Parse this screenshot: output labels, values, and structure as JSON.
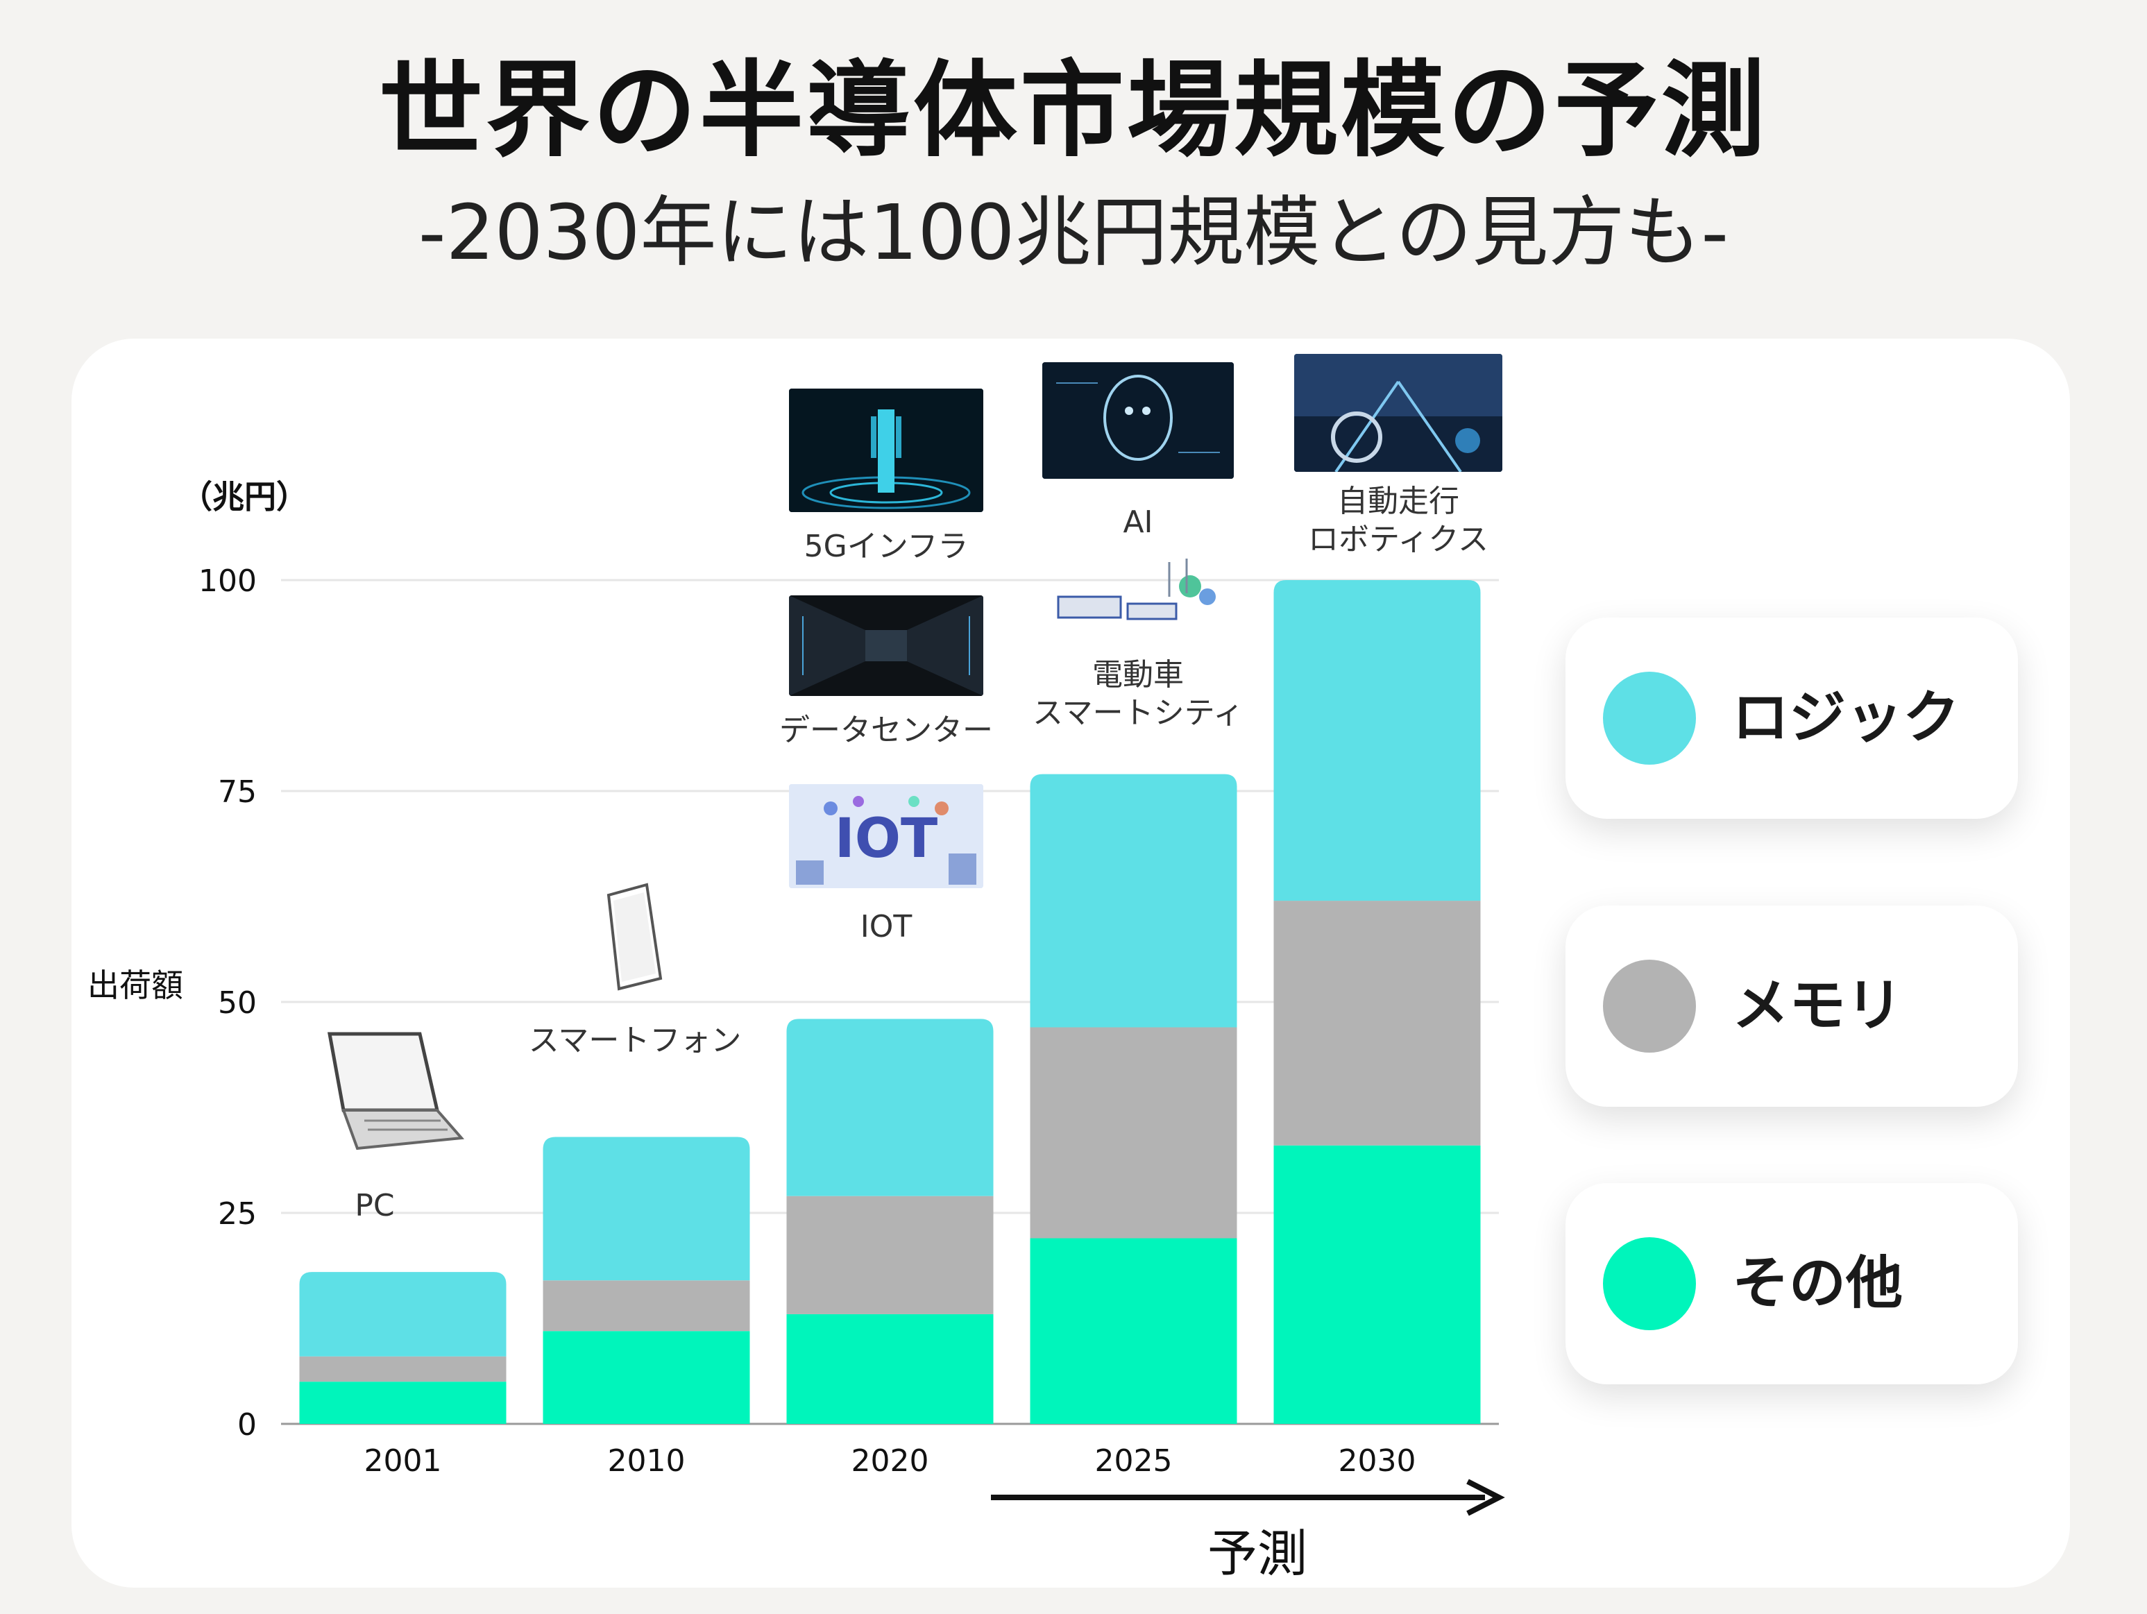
{
  "title": "世界の半導体市場規模の予測",
  "subtitle": "-2030年には100兆円規模との見方も-",
  "chart_data": {
    "type": "bar",
    "stacked": true,
    "categories": [
      "2001",
      "2010",
      "2020",
      "2025",
      "2030"
    ],
    "series": [
      {
        "name": "その他",
        "color": "#00f5bb",
        "values": [
          5,
          11,
          13,
          22,
          33
        ]
      },
      {
        "name": "メモリ",
        "color": "#b3b3b3",
        "values": [
          3,
          6,
          14,
          25,
          29
        ]
      },
      {
        "name": "ロジック",
        "color": "#5ee0e6",
        "values": [
          10,
          17,
          21,
          30,
          38
        ]
      }
    ],
    "ylabel": "出荷額",
    "unit": "（兆円）",
    "ylim": [
      0,
      100
    ],
    "yticks": [
      0,
      25,
      50,
      75,
      100
    ],
    "grid": true,
    "legend_position": "right",
    "forecast_label": "予測"
  },
  "legend": [
    {
      "label": "ロジック",
      "color": "#5ee0e6"
    },
    {
      "label": "メモリ",
      "color": "#b3b3b3"
    },
    {
      "label": "その他",
      "color": "#00f5bb"
    }
  ],
  "annotations": {
    "pc": "PC",
    "smartphone": "スマートフォン",
    "iot": "IOT",
    "datacenter": "データセンター",
    "infra5g": "5Gインフラ",
    "ev_line1": "電動車",
    "ev_line2": "スマートシティ",
    "ai": "AI",
    "auto_line1": "自動走行",
    "auto_line2": "ロボティクス"
  }
}
